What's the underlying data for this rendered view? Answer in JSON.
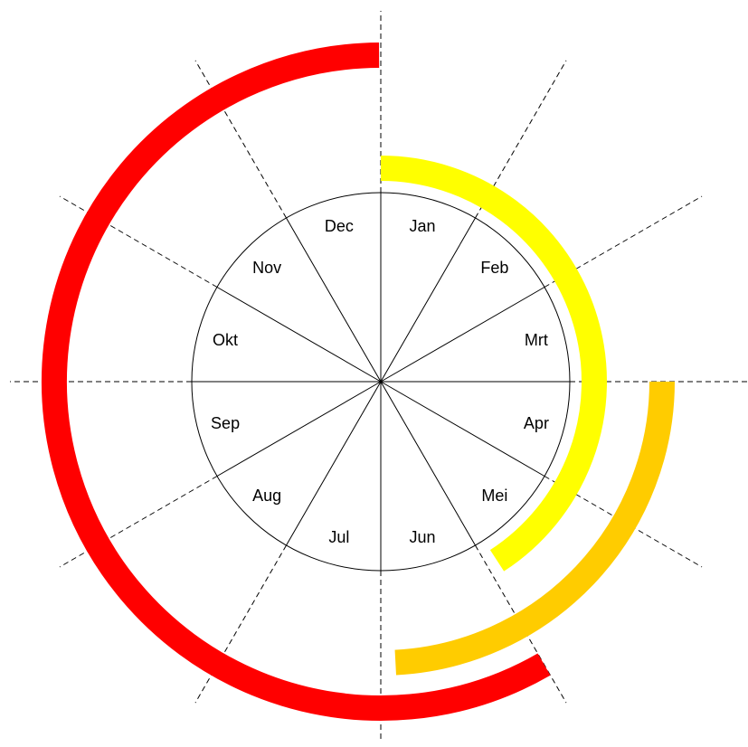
{
  "months": [
    "Jan",
    "Feb",
    "Mrt",
    "Apr",
    "Mei",
    "Jun",
    "Jul",
    "Aug",
    "Sep",
    "Okt",
    "Nov",
    "Dec"
  ],
  "colors": {
    "background": "#ffffff",
    "line": "#000000",
    "guide": "#000000"
  },
  "arcs": [
    {
      "name": "yellow-arc",
      "color": "#ffff00",
      "start_month": 0,
      "end_month": 4.9
    },
    {
      "name": "orange-arc",
      "color": "#ffcc00",
      "start_month": 3,
      "end_month": 5.9
    },
    {
      "name": "red-arc",
      "color": "#ff0000",
      "start_month": 5,
      "end_month": 11.99
    }
  ]
}
